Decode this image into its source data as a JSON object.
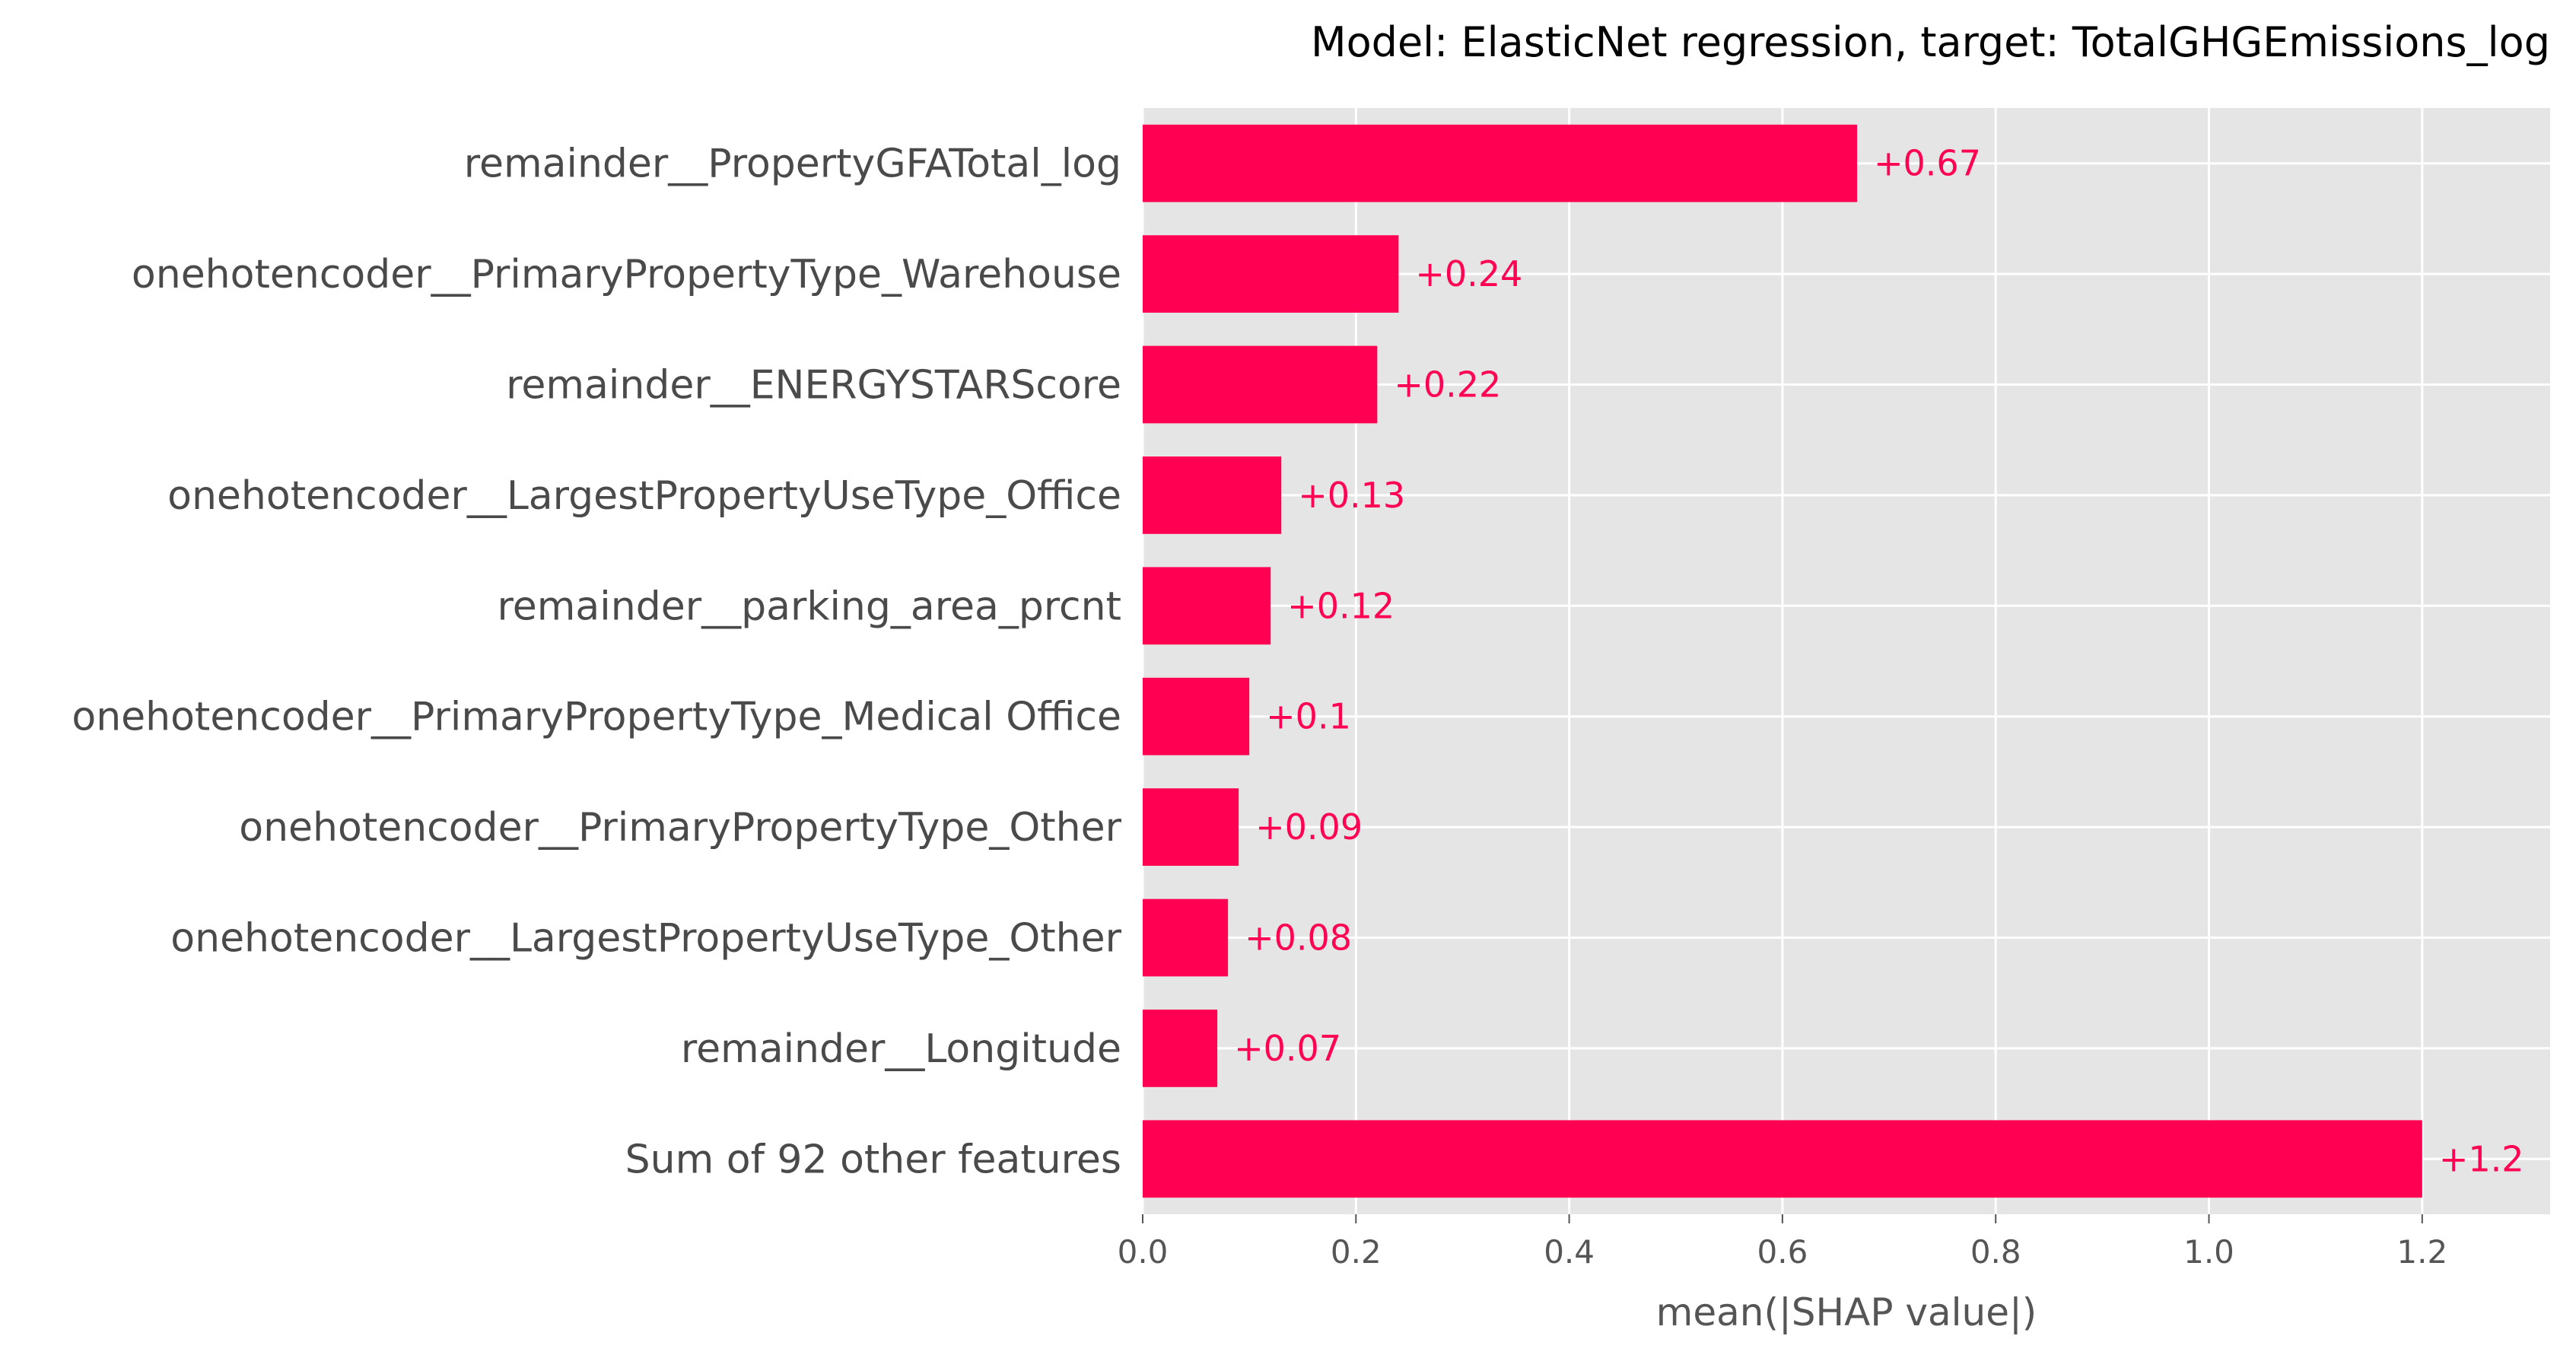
{
  "chart_data": {
    "type": "bar",
    "orientation": "horizontal",
    "title": "Model: ElasticNet regression, target: TotalGHGEmissions_log",
    "xlabel": "mean(|SHAP value|)",
    "ylabel": "",
    "categories": [
      "remainder__PropertyGFATotal_log",
      "onehotencoder__PrimaryPropertyType_Warehouse",
      "remainder__ENERGYSTARScore",
      "onehotencoder__LargestPropertyUseType_Office",
      "remainder__parking_area_prcnt",
      "onehotencoder__PrimaryPropertyType_Medical Office",
      "onehotencoder__PrimaryPropertyType_Other",
      "onehotencoder__LargestPropertyUseType_Other",
      "remainder__Longitude",
      "Sum of 92 other features"
    ],
    "values": [
      0.67,
      0.24,
      0.22,
      0.13,
      0.12,
      0.1,
      0.09,
      0.08,
      0.07,
      1.2
    ],
    "value_labels": [
      "+0.67",
      "+0.24",
      "+0.22",
      "+0.13",
      "+0.12",
      "+0.1",
      "+0.09",
      "+0.08",
      "+0.07",
      "+1.2"
    ],
    "xlim": [
      0.0,
      1.32
    ],
    "xticks": [
      0.0,
      0.2,
      0.4,
      0.6,
      0.8,
      1.0,
      1.2
    ],
    "xtick_labels": [
      "0.0",
      "0.2",
      "0.4",
      "0.6",
      "0.8",
      "1.0",
      "1.2"
    ],
    "grid": true,
    "colors": {
      "bar": "#ff0052",
      "value_label": "#ff0052",
      "background": "#e5e5e5",
      "grid": "#ffffff"
    }
  }
}
